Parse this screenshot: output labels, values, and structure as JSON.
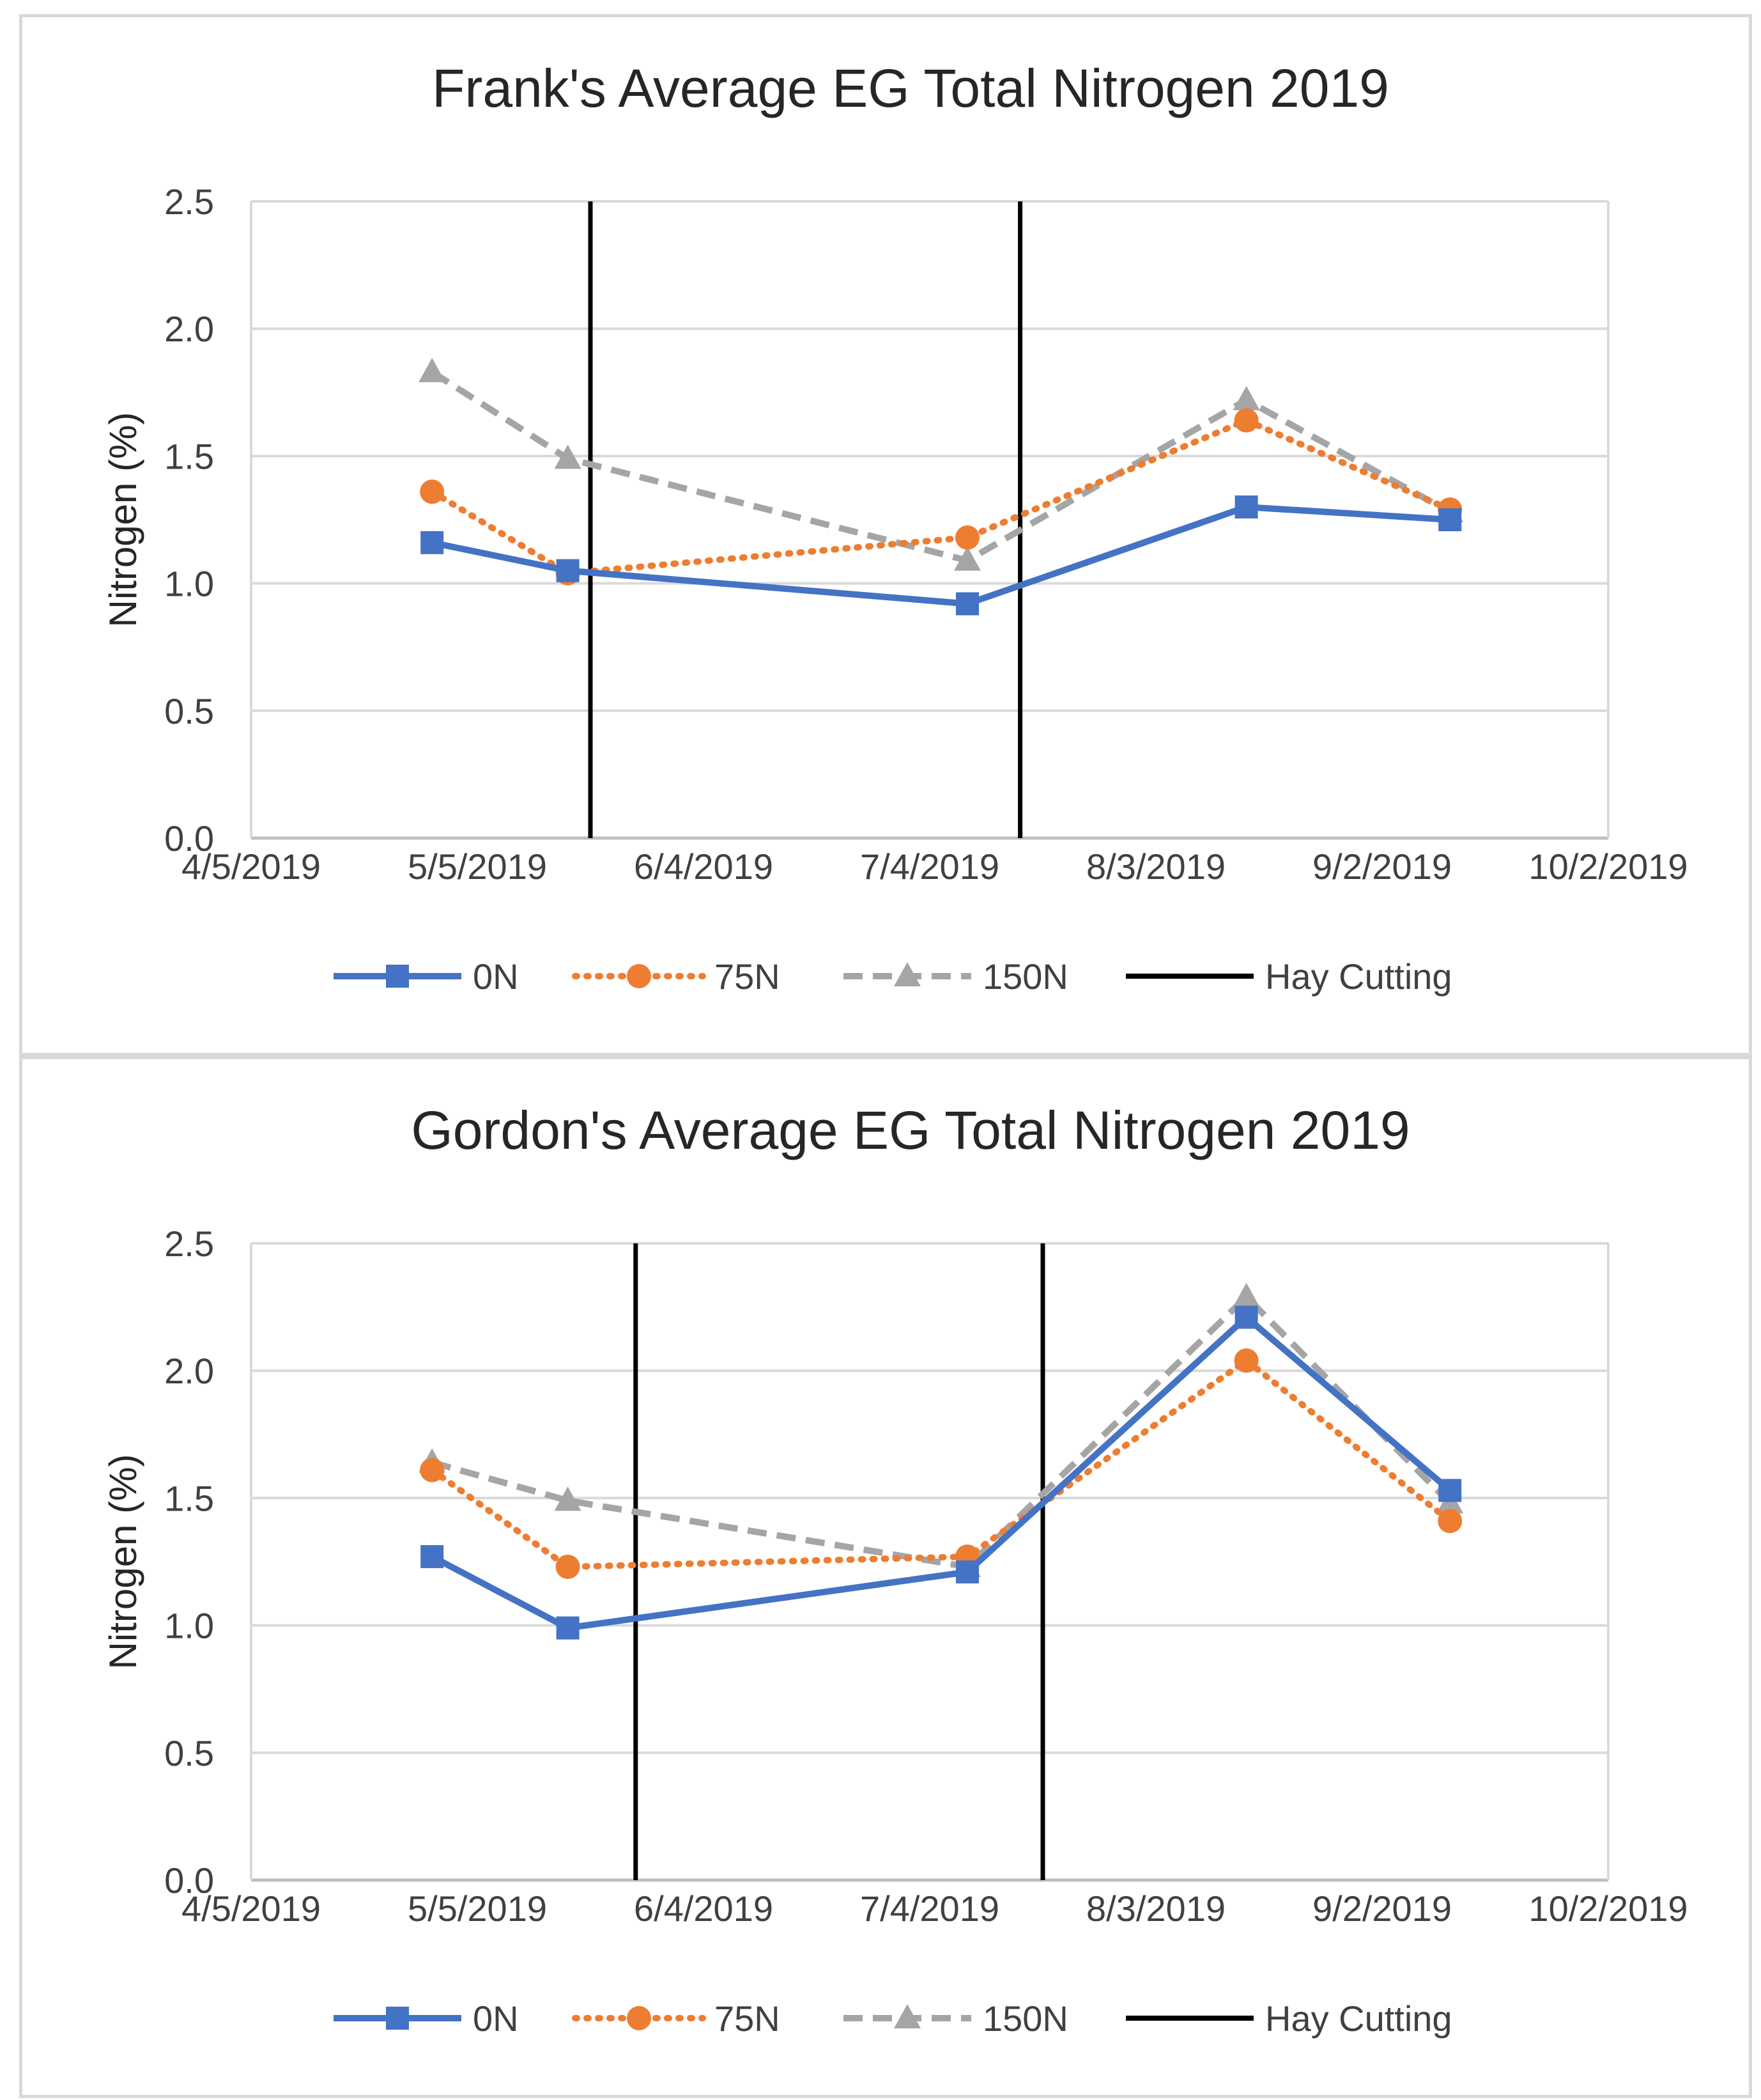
{
  "chart_data": [
    {
      "type": "line",
      "title": "Frank's Average EG Total Nitrogen 2019",
      "xlabel": "",
      "ylabel": "Nitrogen (%)",
      "ylim": [
        0,
        2.5
      ],
      "yticks": [
        "0.0",
        "0.5",
        "1.0",
        "1.5",
        "2.0",
        "2.5"
      ],
      "xticks": [
        "4/5/2019",
        "5/5/2019",
        "6/4/2019",
        "7/4/2019",
        "8/3/2019",
        "9/2/2019",
        "10/2/2019"
      ],
      "x_range_days": [
        0,
        180
      ],
      "grid": true,
      "legend_position": "bottom",
      "series": [
        {
          "name": "0N",
          "color": "#4472C4",
          "style": "solid",
          "marker": "square",
          "x_days": [
            24,
            42,
            95,
            132,
            159
          ],
          "values": [
            1.16,
            1.05,
            0.92,
            1.3,
            1.25
          ]
        },
        {
          "name": "75N",
          "color": "#ED7D31",
          "style": "dotted",
          "marker": "circle",
          "x_days": [
            24,
            42,
            95,
            132,
            159
          ],
          "values": [
            1.36,
            1.04,
            1.18,
            1.64,
            1.29
          ]
        },
        {
          "name": "150N",
          "color": "#A5A5A5",
          "style": "dashed",
          "marker": "triangle",
          "x_days": [
            24,
            42,
            95,
            132,
            159
          ],
          "values": [
            1.83,
            1.49,
            1.09,
            1.72,
            1.28
          ]
        }
      ],
      "hay_cutting": {
        "name": "Hay Cutting",
        "color": "#000000",
        "x_days": [
          45,
          102
        ]
      }
    },
    {
      "type": "line",
      "title": "Gordon's Average EG Total Nitrogen 2019",
      "xlabel": "",
      "ylabel": "Nitrogen (%)",
      "ylim": [
        0,
        2.5
      ],
      "yticks": [
        "0.0",
        "0.5",
        "1.0",
        "1.5",
        "2.0",
        "2.5"
      ],
      "xticks": [
        "4/5/2019",
        "5/5/2019",
        "6/4/2019",
        "7/4/2019",
        "8/3/2019",
        "9/2/2019",
        "10/2/2019"
      ],
      "x_range_days": [
        0,
        180
      ],
      "grid": true,
      "legend_position": "bottom",
      "series": [
        {
          "name": "0N",
          "color": "#4472C4",
          "style": "solid",
          "marker": "square",
          "x_days": [
            24,
            42,
            95,
            132,
            159
          ],
          "values": [
            1.27,
            0.99,
            1.21,
            2.21,
            1.53
          ]
        },
        {
          "name": "75N",
          "color": "#ED7D31",
          "style": "dotted",
          "marker": "circle",
          "x_days": [
            24,
            42,
            95,
            132,
            159
          ],
          "values": [
            1.61,
            1.23,
            1.27,
            2.04,
            1.41
          ]
        },
        {
          "name": "150N",
          "color": "#A5A5A5",
          "style": "dashed",
          "marker": "triangle",
          "x_days": [
            24,
            42,
            95,
            132,
            159
          ],
          "values": [
            1.64,
            1.49,
            1.23,
            2.29,
            1.48
          ]
        }
      ],
      "hay_cutting": {
        "name": "Hay Cutting",
        "color": "#000000",
        "x_days": [
          51,
          105
        ]
      }
    }
  ]
}
